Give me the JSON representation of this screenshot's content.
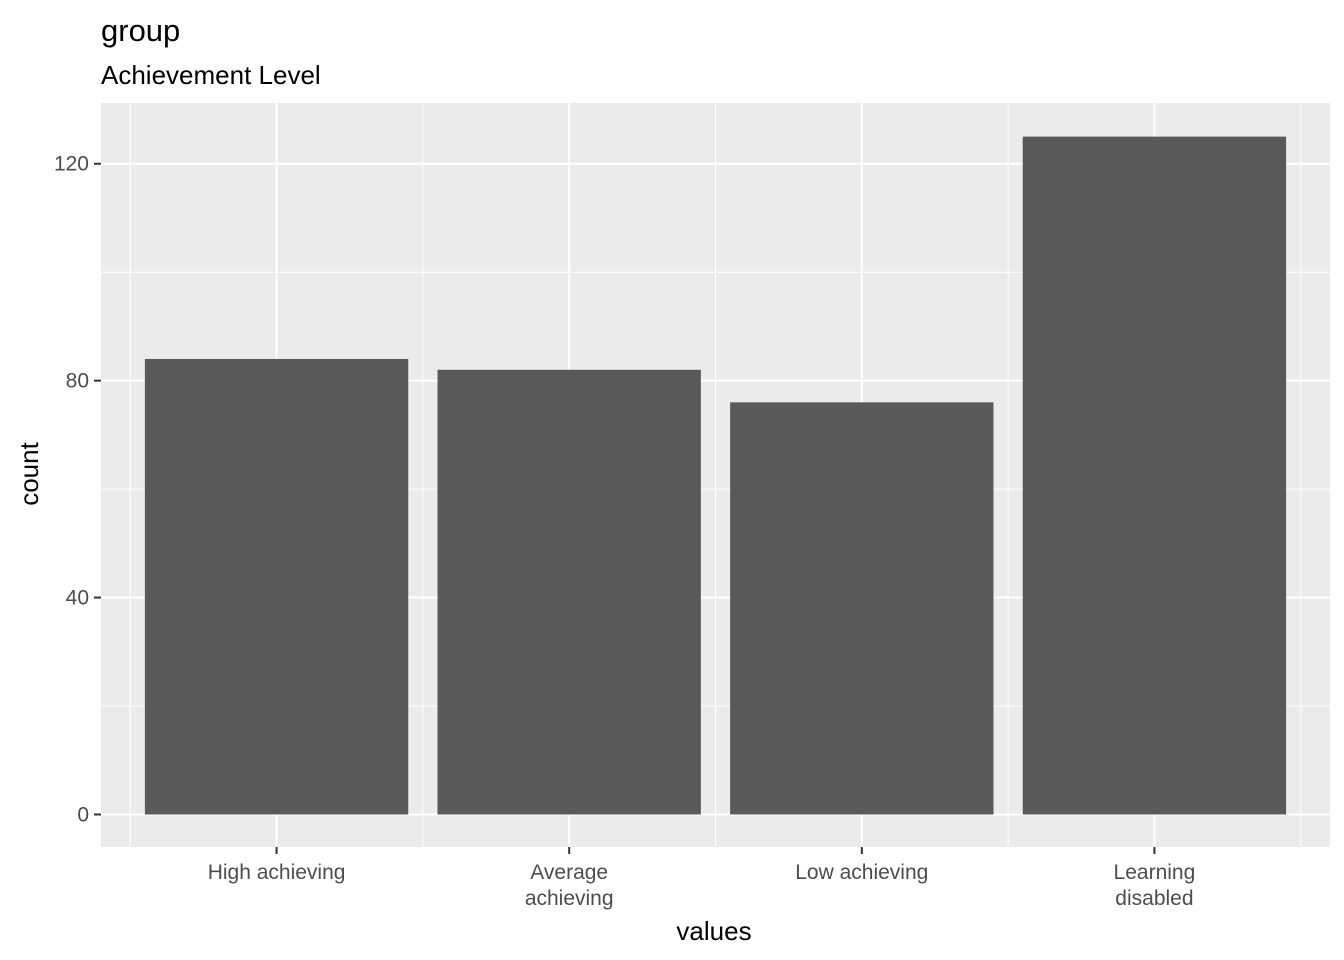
{
  "chart_data": {
    "type": "bar",
    "title": "group",
    "subtitle": "Achievement Level",
    "xlabel": "values",
    "ylabel": "count",
    "categories": [
      [
        "High achieving"
      ],
      [
        "Average",
        "achieving"
      ],
      [
        "Low achieving"
      ],
      [
        "Learning",
        "disabled"
      ]
    ],
    "values": [
      84,
      82,
      76,
      125
    ],
    "ylim": [
      -6,
      131.2
    ],
    "yticks": [
      0,
      40,
      80,
      120
    ],
    "grid": true,
    "legend": "none",
    "colors": {
      "bar": "#595959",
      "panel": "#ebebeb",
      "grid_major": "#ffffff",
      "tick_text": "#4d4d4d",
      "tick_mark": "#333333"
    }
  }
}
